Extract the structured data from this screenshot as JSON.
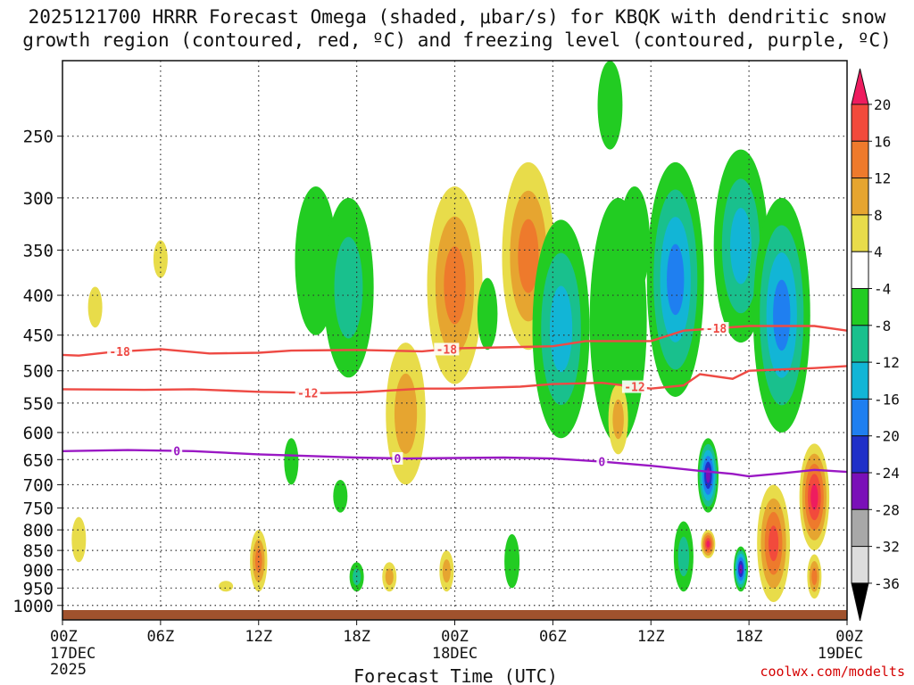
{
  "title_line1": "2025121700 HRRR Forecast Omega (shaded, μbar/s) for KBQK with dendritic snow",
  "title_line2": "growth region (contoured, red, ºC) and freezing level (contoured, purple, ºC)",
  "credit": "coolwx.com/modelts",
  "chart_data": {
    "type": "time-height cross section",
    "xlabel": "Forecast Time (UTC)",
    "x_range_hours": [
      0,
      48
    ],
    "x_ticks": [
      {
        "hour": 0,
        "label": "00Z",
        "sub1": "17DEC",
        "sub2": "2025"
      },
      {
        "hour": 6,
        "label": "06Z",
        "sub1": "",
        "sub2": ""
      },
      {
        "hour": 12,
        "label": "12Z",
        "sub1": "",
        "sub2": ""
      },
      {
        "hour": 18,
        "label": "18Z",
        "sub1": "",
        "sub2": ""
      },
      {
        "hour": 24,
        "label": "00Z",
        "sub1": "18DEC",
        "sub2": ""
      },
      {
        "hour": 30,
        "label": "06Z",
        "sub1": "",
        "sub2": ""
      },
      {
        "hour": 36,
        "label": "12Z",
        "sub1": "",
        "sub2": ""
      },
      {
        "hour": 42,
        "label": "18Z",
        "sub1": "",
        "sub2": ""
      },
      {
        "hour": 48,
        "label": "00Z",
        "sub1": "19DEC",
        "sub2": ""
      }
    ],
    "y_pressure_levels": [
      250,
      300,
      350,
      400,
      450,
      500,
      550,
      600,
      650,
      700,
      750,
      800,
      850,
      900,
      950,
      1000
    ],
    "y_range_hpa": [
      200,
      1030
    ],
    "colorbar": {
      "labels": [
        "20",
        "16",
        "12",
        "8",
        "4",
        "-4",
        "-8",
        "-12",
        "-16",
        "-20",
        "-24",
        "-28",
        "-32",
        "-36"
      ],
      "colors": [
        "#ee1c5f",
        "#f24a3c",
        "#ee7a2c",
        "#e6a530",
        "#e8dc4a",
        "#ffffff",
        "#22cc22",
        "#19c08d",
        "#12b5d6",
        "#1f7ff0",
        "#2030c8",
        "#7a10b8",
        "#a8a8a8"
      ]
    },
    "contours": [
      {
        "name": "dgz -18",
        "color": "#ee4a44",
        "label": "-18",
        "label_hours": [
          3.5,
          23.5,
          40
        ],
        "points": [
          [
            0,
            477
          ],
          [
            1,
            478
          ],
          [
            3,
            473
          ],
          [
            6,
            469
          ],
          [
            9,
            475
          ],
          [
            12,
            474
          ],
          [
            14,
            471
          ],
          [
            18,
            470
          ],
          [
            22,
            472
          ],
          [
            24,
            468
          ],
          [
            28,
            466
          ],
          [
            30,
            465
          ],
          [
            32,
            458
          ],
          [
            36,
            458
          ],
          [
            38,
            444
          ],
          [
            42,
            438
          ],
          [
            46,
            438
          ],
          [
            48,
            444
          ]
        ]
      },
      {
        "name": "dgz -12",
        "color": "#ee4a44",
        "label": "-12",
        "label_hours": [
          15,
          35
        ],
        "points": [
          [
            0,
            528
          ],
          [
            5,
            529
          ],
          [
            8,
            528
          ],
          [
            12,
            532
          ],
          [
            16,
            534
          ],
          [
            18,
            533
          ],
          [
            22,
            527
          ],
          [
            24,
            527
          ],
          [
            28,
            524
          ],
          [
            30,
            520
          ],
          [
            33,
            518
          ],
          [
            36,
            527
          ],
          [
            38,
            522
          ],
          [
            39,
            505
          ],
          [
            41,
            512
          ],
          [
            42,
            500
          ],
          [
            46,
            496
          ],
          [
            48,
            493
          ]
        ]
      },
      {
        "name": "freezing level 0",
        "color": "#9a18c4",
        "label": "0",
        "label_hours": [
          7,
          20.5,
          33
        ],
        "points": [
          [
            0,
            634
          ],
          [
            4,
            632
          ],
          [
            8,
            634
          ],
          [
            12,
            640
          ],
          [
            15,
            643
          ],
          [
            18,
            646
          ],
          [
            21,
            648
          ],
          [
            24,
            647
          ],
          [
            27,
            646
          ],
          [
            30,
            648
          ],
          [
            33,
            654
          ],
          [
            36,
            662
          ],
          [
            39,
            672
          ],
          [
            41,
            678
          ],
          [
            42,
            683
          ],
          [
            44,
            677
          ],
          [
            46,
            670
          ],
          [
            48,
            674
          ]
        ]
      }
    ],
    "omega_features": [
      {
        "hour": 1.0,
        "p_top": 770,
        "p_bot": 880,
        "max_value": 4,
        "sign": "pos"
      },
      {
        "hour": 2.0,
        "p_top": 390,
        "p_bot": 440,
        "max_value": 4,
        "sign": "pos"
      },
      {
        "hour": 6.0,
        "p_top": 340,
        "p_bot": 380,
        "max_value": 4,
        "sign": "pos"
      },
      {
        "hour": 12.0,
        "p_top": 800,
        "p_bot": 960,
        "max_value": 12,
        "sign": "pos"
      },
      {
        "hour": 10.0,
        "p_top": 930,
        "p_bot": 960,
        "max_value": 4,
        "sign": "pos"
      },
      {
        "hour": 15.5,
        "p_top": 290,
        "p_bot": 450,
        "max_value": -8,
        "sign": "neg"
      },
      {
        "hour": 17.5,
        "p_top": 300,
        "p_bot": 510,
        "max_value": -12,
        "sign": "neg"
      },
      {
        "hour": 14.0,
        "p_top": 610,
        "p_bot": 700,
        "max_value": -8,
        "sign": "neg"
      },
      {
        "hour": 17.0,
        "p_top": 690,
        "p_bot": 760,
        "max_value": -8,
        "sign": "neg"
      },
      {
        "hour": 18.0,
        "p_top": 880,
        "p_bot": 960,
        "max_value": -12,
        "sign": "neg"
      },
      {
        "hour": 20.0,
        "p_top": 880,
        "p_bot": 960,
        "max_value": 8,
        "sign": "pos"
      },
      {
        "hour": 21.0,
        "p_top": 460,
        "p_bot": 700,
        "max_value": 8,
        "sign": "pos"
      },
      {
        "hour": 24.0,
        "p_top": 290,
        "p_bot": 520,
        "max_value": 12,
        "sign": "pos"
      },
      {
        "hour": 23.5,
        "p_top": 850,
        "p_bot": 960,
        "max_value": 8,
        "sign": "pos"
      },
      {
        "hour": 26.0,
        "p_top": 380,
        "p_bot": 470,
        "max_value": -8,
        "sign": "neg"
      },
      {
        "hour": 27.5,
        "p_top": 810,
        "p_bot": 950,
        "max_value": -8,
        "sign": "neg"
      },
      {
        "hour": 28.5,
        "p_top": 270,
        "p_bot": 470,
        "max_value": 12,
        "sign": "pos"
      },
      {
        "hour": 30.5,
        "p_top": 320,
        "p_bot": 610,
        "max_value": -16,
        "sign": "neg"
      },
      {
        "hour": 33.5,
        "p_top": 200,
        "p_bot": 260,
        "max_value": -8,
        "sign": "neg"
      },
      {
        "hour": 34.0,
        "p_top": 300,
        "p_bot": 620,
        "max_value": -8,
        "sign": "neg"
      },
      {
        "hour": 34.0,
        "p_top": 520,
        "p_bot": 640,
        "max_value": 8,
        "sign": "pos"
      },
      {
        "hour": 35.0,
        "p_top": 290,
        "p_bot": 400,
        "max_value": -8,
        "sign": "neg"
      },
      {
        "hour": 37.5,
        "p_top": 270,
        "p_bot": 540,
        "max_value": -20,
        "sign": "neg"
      },
      {
        "hour": 39.5,
        "p_top": 610,
        "p_bot": 760,
        "max_value": -28,
        "sign": "neg"
      },
      {
        "hour": 38.0,
        "p_top": 780,
        "p_bot": 960,
        "max_value": -12,
        "sign": "neg"
      },
      {
        "hour": 41.5,
        "p_top": 260,
        "p_bot": 460,
        "max_value": -16,
        "sign": "neg"
      },
      {
        "hour": 44.0,
        "p_top": 300,
        "p_bot": 600,
        "max_value": -20,
        "sign": "neg"
      },
      {
        "hour": 39.5,
        "p_top": 800,
        "p_bot": 870,
        "max_value": 20,
        "sign": "pos"
      },
      {
        "hour": 41.5,
        "p_top": 840,
        "p_bot": 960,
        "max_value": -28,
        "sign": "neg"
      },
      {
        "hour": 43.5,
        "p_top": 700,
        "p_bot": 990,
        "max_value": 16,
        "sign": "pos"
      },
      {
        "hour": 46.0,
        "p_top": 620,
        "p_bot": 850,
        "max_value": 20,
        "sign": "pos"
      },
      {
        "hour": 46.0,
        "p_top": 860,
        "p_bot": 980,
        "max_value": 12,
        "sign": "pos"
      }
    ],
    "terrain_color": "#a0522d"
  }
}
